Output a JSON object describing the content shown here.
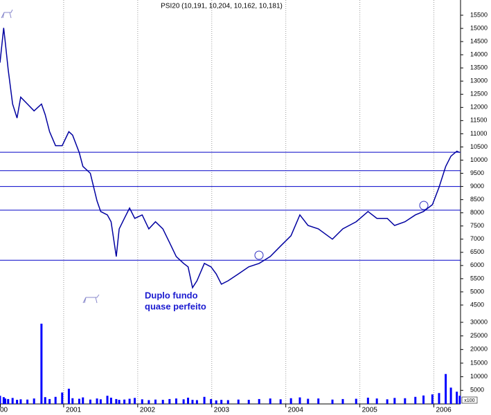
{
  "chart_data": {
    "type": "line",
    "title": "PSI20 (10,191, 10,204, 10,162, 10,181)",
    "annotation": [
      "Duplo fundo",
      "quase perfeito"
    ],
    "volume_unit": "x100",
    "x": [
      2000.14,
      2000.19,
      2000.21,
      2000.25,
      2000.31,
      2000.37,
      2000.42,
      2000.51,
      2000.6,
      2000.7,
      2000.75,
      2000.81,
      2000.89,
      2000.98,
      2001.07,
      2001.12,
      2001.21,
      2001.26,
      2001.36,
      2001.45,
      2001.5,
      2001.59,
      2001.64,
      2001.71,
      2001.75,
      2001.82,
      2001.89,
      2001.96,
      2002.06,
      2002.15,
      2002.24,
      2002.34,
      2002.43,
      2002.52,
      2002.62,
      2002.68,
      2002.74,
      2002.8,
      2002.9,
      2002.99,
      2003.06,
      2003.13,
      2003.22,
      2003.36,
      2003.5,
      2003.64,
      2003.79,
      2003.93,
      2004.07,
      2004.19,
      2004.3,
      2004.44,
      2004.63,
      2004.77,
      2004.95,
      2005.11,
      2005.23,
      2005.37,
      2005.47,
      2005.61,
      2005.75,
      2005.86,
      2005.98,
      2006.07,
      2006.16,
      2006.23,
      2006.31,
      2006.35
    ],
    "series": [
      {
        "name": "PSI20",
        "color": "#0000a0",
        "values": [
          13700,
          15020,
          14500,
          13440,
          12130,
          11600,
          12390,
          12130,
          11870,
          12130,
          11730,
          11080,
          10550,
          10550,
          11080,
          10950,
          10290,
          9760,
          9500,
          8450,
          8050,
          7920,
          7660,
          6340,
          7390,
          7790,
          8180,
          7790,
          7920,
          7390,
          7660,
          7390,
          6870,
          6340,
          6080,
          5950,
          5160,
          5420,
          6080,
          5950,
          5680,
          5290,
          5420,
          5680,
          5950,
          6080,
          6340,
          6740,
          7130,
          7920,
          7520,
          7390,
          7000,
          7390,
          7660,
          8050,
          7790,
          7790,
          7520,
          7660,
          7920,
          8050,
          8310,
          8970,
          9760,
          10150,
          10340,
          10290
        ]
      },
      {
        "name": "Volume",
        "color": "#0000ff",
        "axis": "y2",
        "values": [
          3000,
          2500,
          2000,
          1800,
          2200,
          1500,
          1700,
          1600,
          2000,
          29500,
          2500,
          1800,
          2600,
          4200,
          5600,
          2100,
          1900,
          2400,
          1600,
          2000,
          1700,
          3000,
          2300,
          1800,
          1500,
          1600,
          1900,
          2200,
          1700,
          1400,
          1600,
          1500,
          1800,
          2000,
          1700,
          2300,
          1500,
          1400,
          2600,
          1800,
          1300,
          1500,
          1400,
          1600,
          1500,
          1800,
          2000,
          1700,
          2100,
          2400,
          1900,
          2000,
          1600,
          1800,
          1900,
          2300,
          2000,
          1700,
          2200,
          2100,
          2600,
          3100,
          3500,
          4000,
          11000,
          6000,
          4500,
          3000
        ]
      }
    ],
    "hlines": [
      10300,
      9600,
      9000,
      8100,
      6200
    ],
    "hline_color": "#0000c8",
    "xlim": [
      2000.14,
      2006.36
    ],
    "xticks": [
      {
        "value": 2000,
        "label": "00"
      },
      2001,
      2002,
      2003,
      2004,
      2005,
      2006
    ],
    "ylim": [
      4450,
      15600
    ],
    "yticks": [
      4500,
      5000,
      5500,
      6000,
      6500,
      7000,
      7500,
      8000,
      8500,
      9000,
      9500,
      10000,
      10500,
      11000,
      11500,
      12000,
      12500,
      13000,
      13500,
      14000,
      14500,
      15000,
      15500
    ],
    "y2lim": [
      0,
      30500
    ],
    "y2ticks": [
      5000,
      10000,
      15000,
      20000,
      25000,
      30000
    ],
    "grid": true
  }
}
